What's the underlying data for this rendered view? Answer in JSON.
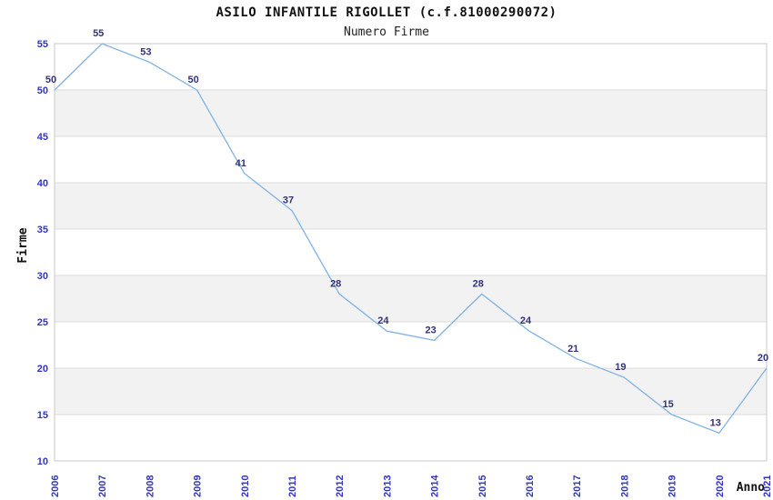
{
  "chart_data": {
    "type": "line",
    "title": "ASILO INFANTILE RIGOLLET (c.f.81000290072)",
    "subtitle": "Numero Firme",
    "xlabel": "Anno",
    "ylabel": "Firme",
    "categories": [
      "2006",
      "2007",
      "2008",
      "2009",
      "2010",
      "2011",
      "2012",
      "2013",
      "2014",
      "2015",
      "2016",
      "2017",
      "2018",
      "2019",
      "2020",
      "2021"
    ],
    "series": [
      {
        "name": "Numero Firme",
        "values": [
          50,
          55,
          53,
          50,
          41,
          37,
          28,
          24,
          23,
          28,
          24,
          21,
          19,
          15,
          13,
          20
        ]
      }
    ],
    "ylim": [
      10,
      55
    ],
    "ytick_step": 5,
    "grid": true,
    "legend": "none",
    "data_labels": true,
    "x_tick_rotation": -90,
    "colors": {
      "line": "#7fb2e5",
      "tick_label": "#3333cc",
      "data_label": "#333377",
      "band": "#f2f2f2",
      "band_alt": "#ffffff",
      "gridline": "#dcdcdc",
      "plot_border": "#c8c8c8",
      "text": "#111111",
      "background": "#ffffff"
    }
  }
}
